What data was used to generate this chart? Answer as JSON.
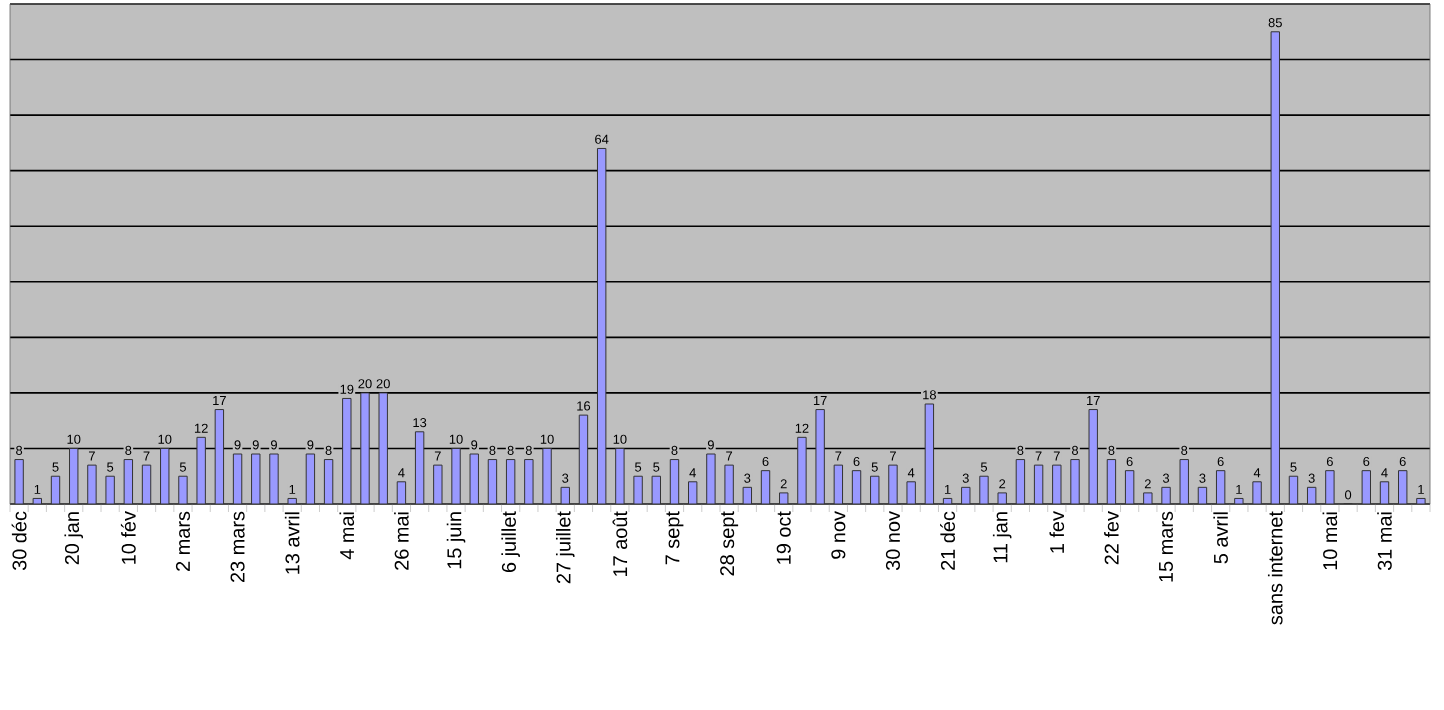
{
  "chart_data": {
    "type": "bar",
    "categories": [
      "30 déc",
      null,
      null,
      "20 jan",
      null,
      null,
      "10 fév",
      null,
      null,
      "2 mars",
      null,
      null,
      "23 mars",
      null,
      null,
      "13 avril",
      null,
      null,
      "4 mai",
      null,
      null,
      "26 mai",
      null,
      null,
      "15 juin",
      null,
      null,
      "6 juillet",
      null,
      null,
      "27 juillet",
      null,
      null,
      "17 août",
      null,
      null,
      "7 sept",
      null,
      null,
      "28 sept",
      null,
      null,
      "19 oct",
      null,
      null,
      "9 nov",
      null,
      null,
      "30 nov",
      null,
      null,
      "21 déc",
      null,
      null,
      "11 jan",
      null,
      null,
      "1 fev",
      null,
      null,
      "22 fev",
      null,
      null,
      "15 mars",
      null,
      null,
      "5 avril",
      null,
      null,
      "sans internet",
      null,
      null,
      "10 mai",
      null,
      null,
      "31 mai",
      null,
      null
    ],
    "values": [
      8,
      1,
      5,
      10,
      7,
      5,
      8,
      7,
      10,
      5,
      12,
      17,
      9,
      9,
      9,
      1,
      9,
      8,
      19,
      20,
      20,
      4,
      13,
      7,
      10,
      9,
      8,
      8,
      8,
      10,
      3,
      16,
      64,
      10,
      5,
      5,
      8,
      4,
      9,
      7,
      3,
      6,
      2,
      12,
      17,
      7,
      6,
      5,
      7,
      4,
      18,
      1,
      3,
      5,
      2,
      8,
      7,
      7,
      8,
      17,
      8,
      6,
      2,
      3,
      8,
      3,
      6,
      1,
      4,
      85,
      5,
      3,
      6,
      0,
      6,
      4,
      6,
      1
    ],
    "color": "#9999ff",
    "ylim": [
      0,
      90
    ],
    "yticks": [
      {
        "value": 0,
        "label": null
      },
      {
        "value": 10,
        "label": null
      },
      {
        "value": 20,
        "label": null
      },
      {
        "value": 30,
        "label": null
      },
      {
        "value": 40,
        "label": null
      },
      {
        "value": 50,
        "label": null
      },
      {
        "value": 60,
        "label": null
      },
      {
        "value": 70,
        "label": null
      },
      {
        "value": 80,
        "label": null
      },
      {
        "value": 90,
        "label": null
      }
    ],
    "tick_labels": "x",
    "grid": "y",
    "value_labels": [
      "8",
      "1",
      "5",
      "10",
      "7",
      "5",
      "8",
      "7",
      "10",
      "5",
      "12",
      "17",
      "9",
      "9",
      "9",
      "1",
      "9",
      "8",
      "19",
      "20",
      "20",
      "4",
      "13",
      "7",
      "10",
      "9",
      "8",
      "8",
      "8",
      "10",
      "3",
      "16",
      "64",
      "10",
      "5",
      "5",
      "8",
      "4",
      "9",
      "7",
      "3",
      "6",
      "2",
      "12",
      "17",
      "7",
      "6",
      "5",
      "7",
      "4",
      "18",
      "1",
      "3",
      "5",
      "2",
      "8",
      "7",
      "7",
      "8",
      "17",
      "8",
      "6",
      "2",
      "3",
      "8",
      "3",
      "6",
      "1",
      "4",
      "85",
      "5",
      "3",
      "6",
      "0",
      "6",
      "4",
      "6",
      "1"
    ]
  }
}
